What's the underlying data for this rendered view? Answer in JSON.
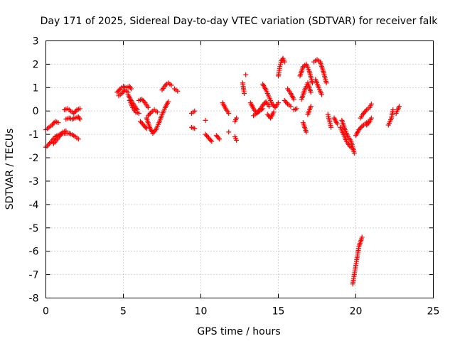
{
  "chart_data": {
    "type": "scatter",
    "title": "Day 171 of 2025, Sidereal Day-to-day VTEC variation (SDTVAR) for receiver falk",
    "xlabel": "GPS time / hours",
    "ylabel": "SDTVAR / TECUs",
    "xlim": [
      0,
      25
    ],
    "ylim": [
      -8,
      3
    ],
    "xticks": [
      0,
      5,
      10,
      15,
      20,
      25
    ],
    "yticks": [
      -8,
      -7,
      -6,
      -5,
      -4,
      -3,
      -2,
      -1,
      0,
      1,
      2,
      3
    ],
    "grid": true,
    "marker": "+",
    "color": "#ff0000",
    "segments": [
      {
        "x": [
          0.0,
          0.3,
          0.6,
          0.9,
          1.2,
          1.5,
          1.8,
          2.1
        ],
        "y": [
          -1.55,
          -1.35,
          -1.1,
          -1.0,
          -0.95,
          -0.95,
          -1.05,
          -1.2
        ]
      },
      {
        "x": [
          0.0,
          0.2,
          0.4,
          0.6,
          0.8
        ],
        "y": [
          -0.8,
          -0.7,
          -0.6,
          -0.45,
          -0.5
        ]
      },
      {
        "x": [
          0.5,
          0.8,
          1.1,
          1.3
        ],
        "y": [
          -1.4,
          -1.15,
          -0.9,
          -0.85
        ]
      },
      {
        "x": [
          1.2,
          1.4,
          1.6,
          1.8,
          2.0,
          2.2
        ],
        "y": [
          0.05,
          0.1,
          0.0,
          -0.1,
          0.05,
          0.1
        ]
      },
      {
        "x": [
          1.3,
          1.5,
          1.7,
          1.9,
          2.1,
          2.2
        ],
        "y": [
          -0.35,
          -0.3,
          -0.35,
          -0.3,
          -0.25,
          -0.35
        ]
      },
      {
        "x": [
          4.6,
          4.8,
          5.0,
          5.2,
          5.4,
          5.5
        ],
        "y": [
          0.8,
          0.95,
          1.05,
          1.0,
          1.05,
          0.95
        ]
      },
      {
        "x": [
          4.7,
          4.9,
          5.1,
          5.3
        ],
        "y": [
          0.65,
          0.75,
          0.9,
          0.8
        ]
      },
      {
        "x": [
          5.3,
          5.5,
          5.7,
          5.9
        ],
        "y": [
          0.7,
          0.45,
          0.25,
          0.05
        ]
      },
      {
        "x": [
          5.4,
          5.6,
          5.8,
          6.0
        ],
        "y": [
          0.45,
          0.15,
          -0.05,
          -0.1
        ]
      },
      {
        "x": [
          6.0,
          6.2,
          6.4,
          6.6
        ],
        "y": [
          0.45,
          0.5,
          0.35,
          0.15
        ]
      },
      {
        "x": [
          6.1,
          6.3,
          6.5
        ],
        "y": [
          -0.45,
          -0.6,
          -0.75
        ]
      },
      {
        "x": [
          6.5,
          6.7,
          6.9,
          7.1,
          7.3,
          7.5,
          7.7,
          7.9
        ],
        "y": [
          -0.3,
          -0.7,
          -0.95,
          -0.8,
          -0.5,
          -0.15,
          0.15,
          0.4
        ]
      },
      {
        "x": [
          6.6,
          6.8,
          7.0,
          7.2
        ],
        "y": [
          -0.2,
          -0.05,
          0.05,
          -0.05
        ]
      },
      {
        "x": [
          7.5,
          7.7,
          7.9,
          8.1
        ],
        "y": [
          0.9,
          1.1,
          1.2,
          1.1
        ]
      },
      {
        "x": [
          8.3,
          8.5
        ],
        "y": [
          0.95,
          0.85
        ]
      },
      {
        "x": [
          9.4,
          9.6
        ],
        "y": [
          -0.1,
          0.0
        ]
      },
      {
        "x": [
          9.4,
          9.6
        ],
        "y": [
          -0.7,
          -0.75
        ]
      },
      {
        "x": [
          10.3
        ],
        "y": [
          -0.4
        ]
      },
      {
        "x": [
          10.3,
          10.5,
          10.7
        ],
        "y": [
          -1.0,
          -1.15,
          -1.3
        ]
      },
      {
        "x": [
          11.0,
          11.2
        ],
        "y": [
          -1.05,
          -1.2
        ]
      },
      {
        "x": [
          11.4,
          11.6,
          11.8
        ],
        "y": [
          0.35,
          0.1,
          -0.1
        ]
      },
      {
        "x": [
          11.8
        ],
        "y": [
          -0.9
        ]
      },
      {
        "x": [
          12.2,
          12.3
        ],
        "y": [
          -0.45,
          -0.3
        ]
      },
      {
        "x": [
          12.2,
          12.3
        ],
        "y": [
          -1.1,
          -1.25
        ]
      },
      {
        "x": [
          12.7,
          12.8
        ],
        "y": [
          1.2,
          0.75
        ]
      },
      {
        "x": [
          12.9
        ],
        "y": [
          1.55
        ]
      },
      {
        "x": [
          13.2,
          13.4,
          13.6,
          13.8,
          14.0,
          14.2,
          14.4
        ],
        "y": [
          0.35,
          0.1,
          -0.1,
          0.05,
          0.25,
          0.4,
          0.2
        ]
      },
      {
        "x": [
          13.4,
          13.6,
          13.8,
          14.0
        ],
        "y": [
          -0.2,
          -0.1,
          0.0,
          0.1
        ]
      },
      {
        "x": [
          14.0,
          14.2,
          14.4,
          14.6,
          14.8,
          15.0
        ],
        "y": [
          1.15,
          0.9,
          0.6,
          0.3,
          0.15,
          0.35
        ]
      },
      {
        "x": [
          14.3,
          14.5,
          14.7
        ],
        "y": [
          -0.15,
          -0.3,
          -0.05
        ]
      },
      {
        "x": [
          15.0,
          15.1,
          15.2,
          15.3,
          15.4
        ],
        "y": [
          1.5,
          1.9,
          2.15,
          2.25,
          2.1
        ]
      },
      {
        "x": [
          15.4,
          15.6,
          15.8
        ],
        "y": [
          0.45,
          0.3,
          0.2
        ]
      },
      {
        "x": [
          15.6,
          15.8,
          16.0
        ],
        "y": [
          0.95,
          0.75,
          0.5
        ]
      },
      {
        "x": [
          16.0,
          16.2
        ],
        "y": [
          0.05,
          0.1
        ]
      },
      {
        "x": [
          16.4,
          16.6,
          16.8,
          17.0,
          17.2
        ],
        "y": [
          1.5,
          1.9,
          2.0,
          1.7,
          1.2
        ]
      },
      {
        "x": [
          16.5,
          16.7,
          16.9,
          17.1
        ],
        "y": [
          0.5,
          0.9,
          1.2,
          0.8
        ]
      },
      {
        "x": [
          16.6,
          16.8
        ],
        "y": [
          -0.5,
          -0.9
        ]
      },
      {
        "x": [
          16.9,
          17.1
        ],
        "y": [
          -0.15,
          0.2
        ]
      },
      {
        "x": [
          17.3,
          17.5,
          17.7,
          17.9,
          18.1
        ],
        "y": [
          2.1,
          2.2,
          2.1,
          1.7,
          1.2
        ]
      },
      {
        "x": [
          17.4,
          17.6,
          17.8
        ],
        "y": [
          1.35,
          1.0,
          0.7
        ]
      },
      {
        "x": [
          18.2,
          18.4
        ],
        "y": [
          -0.15,
          -0.7
        ]
      },
      {
        "x": [
          18.6,
          18.8
        ],
        "y": [
          -0.3,
          -0.55
        ]
      },
      {
        "x": [
          19.0,
          19.2,
          19.4,
          19.6,
          19.8
        ],
        "y": [
          -0.7,
          -1.0,
          -1.3,
          -1.5,
          -1.6
        ]
      },
      {
        "x": [
          19.1,
          19.3,
          19.5,
          19.7,
          19.9
        ],
        "y": [
          -0.4,
          -0.8,
          -1.1,
          -1.3,
          -1.8
        ]
      },
      {
        "x": [
          19.8,
          19.9,
          20.0,
          20.1,
          20.2,
          20.4
        ],
        "y": [
          -7.4,
          -7.0,
          -6.6,
          -6.2,
          -5.8,
          -5.4
        ]
      },
      {
        "x": [
          20.0,
          20.2,
          20.4,
          20.6,
          20.8
        ],
        "y": [
          -1.05,
          -0.8,
          -0.65,
          -0.55,
          -0.45
        ]
      },
      {
        "x": [
          20.3,
          20.5,
          20.7,
          20.9,
          21.0
        ],
        "y": [
          -0.3,
          -0.1,
          0.05,
          0.15,
          0.3
        ]
      },
      {
        "x": [
          20.7,
          20.9,
          21.0
        ],
        "y": [
          -0.6,
          -0.45,
          -0.3
        ]
      },
      {
        "x": [
          22.1,
          22.3,
          22.4
        ],
        "y": [
          -0.6,
          -0.3,
          0.05
        ]
      },
      {
        "x": [
          22.6,
          22.8
        ],
        "y": [
          -0.1,
          0.2
        ]
      }
    ]
  }
}
